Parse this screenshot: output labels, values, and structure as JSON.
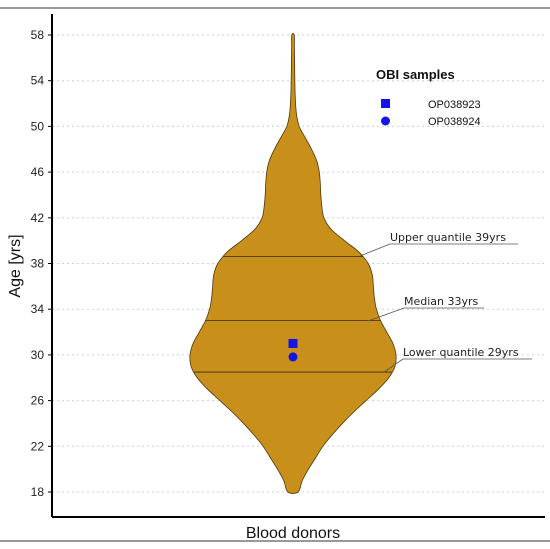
{
  "chart_data": {
    "type": "violin",
    "title": "",
    "xlabel": "Blood donors",
    "ylabel": "Age [yrs]",
    "categories": [
      "Blood donors"
    ],
    "ylim": [
      17,
      60
    ],
    "yticks": [
      18,
      22,
      26,
      30,
      34,
      38,
      42,
      46,
      50,
      54,
      58
    ],
    "grid": "horizontal dotted",
    "violin": {
      "min": 18,
      "max": 58,
      "fill_color": "#C8901A",
      "outline_color": "#4a3510",
      "density_profile": [
        [
          18,
          0.05
        ],
        [
          19,
          0.09
        ],
        [
          20,
          0.15
        ],
        [
          21,
          0.22
        ],
        [
          22,
          0.29
        ],
        [
          23,
          0.38
        ],
        [
          24,
          0.48
        ],
        [
          25,
          0.59
        ],
        [
          26,
          0.71
        ],
        [
          27,
          0.83
        ],
        [
          28,
          0.93
        ],
        [
          29,
          0.99
        ],
        [
          30,
          1.0
        ],
        [
          31,
          0.97
        ],
        [
          32,
          0.91
        ],
        [
          33,
          0.85
        ],
        [
          34,
          0.81
        ],
        [
          35,
          0.79
        ],
        [
          36,
          0.78
        ],
        [
          37,
          0.77
        ],
        [
          38,
          0.73
        ],
        [
          39,
          0.64
        ],
        [
          40,
          0.5
        ],
        [
          41,
          0.37
        ],
        [
          42,
          0.3
        ],
        [
          43,
          0.28
        ],
        [
          44,
          0.27
        ],
        [
          45,
          0.265
        ],
        [
          46,
          0.255
        ],
        [
          47,
          0.23
        ],
        [
          48,
          0.18
        ],
        [
          49,
          0.12
        ],
        [
          50,
          0.06
        ],
        [
          51,
          0.035
        ],
        [
          52,
          0.025
        ],
        [
          53,
          0.02
        ],
        [
          54,
          0.018
        ],
        [
          55,
          0.016
        ],
        [
          56,
          0.015
        ],
        [
          57,
          0.013
        ],
        [
          58,
          0.012
        ]
      ]
    },
    "quantile_lines": [
      {
        "value": 28.5,
        "label": "Lower quantile 29yrs"
      },
      {
        "value": 33,
        "label": "Median 33yrs"
      },
      {
        "value": 38.6,
        "label": "Upper quantile 39yrs"
      }
    ],
    "samples": [
      {
        "name": "OP038923",
        "value": 31,
        "marker": "square",
        "color": "#1414E6"
      },
      {
        "name": "OP038924",
        "value": 30,
        "marker": "circle",
        "color": "#1414E6"
      }
    ],
    "legend": {
      "title": "OBI samples",
      "position": "top-right"
    }
  }
}
